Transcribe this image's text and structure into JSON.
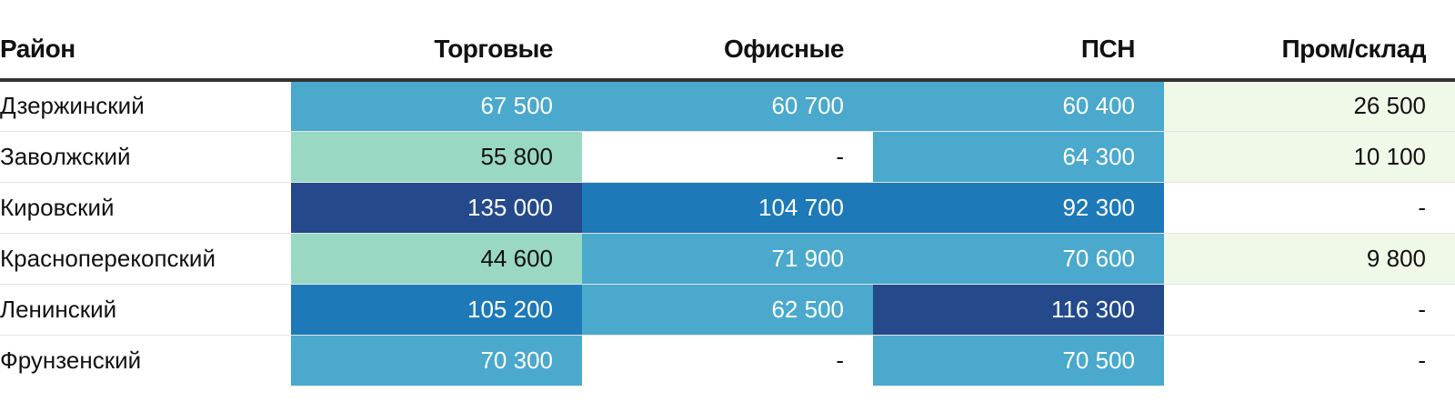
{
  "chart_data": {
    "type": "table",
    "columns": [
      "Район",
      "Торговые",
      "Офисные",
      "ПСН",
      "Пром/склад"
    ],
    "rows": [
      {
        "district": "Дзержинский",
        "values": [
          67500,
          60700,
          60400,
          26500
        ]
      },
      {
        "district": "Заволжский",
        "values": [
          55800,
          null,
          64300,
          10100
        ]
      },
      {
        "district": "Кировский",
        "values": [
          135000,
          104700,
          92300,
          null
        ]
      },
      {
        "district": "Красноперекопский",
        "values": [
          44600,
          71900,
          70600,
          9800
        ]
      },
      {
        "district": "Ленинский",
        "values": [
          105200,
          62500,
          116300,
          null
        ]
      },
      {
        "district": "Фрунзенский",
        "values": [
          70300,
          null,
          70500,
          null
        ]
      }
    ],
    "missing_label": "-",
    "colors": {
      "light_green": "#f0f8e8",
      "mint": "#99d8c3",
      "sky": "#4aa9cc",
      "blue": "#1d79b8",
      "navy": "#244a8c",
      "empty": "#ffffff"
    }
  }
}
